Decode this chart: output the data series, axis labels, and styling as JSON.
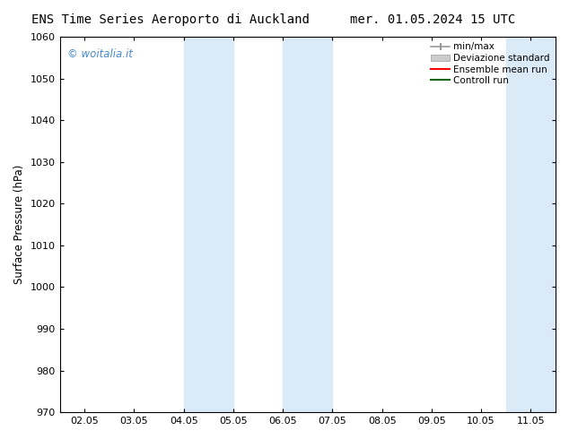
{
  "title_left": "ENS Time Series Aeroporto di Auckland",
  "title_right": "mer. 01.05.2024 15 UTC",
  "ylabel": "Surface Pressure (hPa)",
  "ylim": [
    970,
    1060
  ],
  "yticks": [
    970,
    980,
    990,
    1000,
    1010,
    1020,
    1030,
    1040,
    1050,
    1060
  ],
  "xtick_labels": [
    "02.05",
    "03.05",
    "04.05",
    "05.05",
    "06.05",
    "07.05",
    "08.05",
    "09.05",
    "10.05",
    "11.05"
  ],
  "xtick_positions": [
    0,
    1,
    2,
    3,
    4,
    5,
    6,
    7,
    8,
    9
  ],
  "xlim": [
    -0.5,
    9.5
  ],
  "shaded_regions": [
    {
      "xmin": 2.0,
      "xmax": 3.0,
      "color": "#daeaf7"
    },
    {
      "xmin": 4.0,
      "xmax": 5.0,
      "color": "#daeaf7"
    },
    {
      "xmin": 8.5,
      "xmax": 9.5,
      "color": "#daeaf7"
    }
  ],
  "watermark_text": "© woitalia.it",
  "watermark_color": "#4488cc",
  "legend_labels": [
    "min/max",
    "Deviazione standard",
    "Ensemble mean run",
    "Controll run"
  ],
  "minmax_color": "#999999",
  "dev_std_color": "#cccccc",
  "ensemble_color": "#ff0000",
  "control_color": "#006600",
  "background_color": "#ffffff",
  "title_fontsize": 10,
  "axis_fontsize": 8.5,
  "tick_fontsize": 8,
  "legend_fontsize": 7.5
}
